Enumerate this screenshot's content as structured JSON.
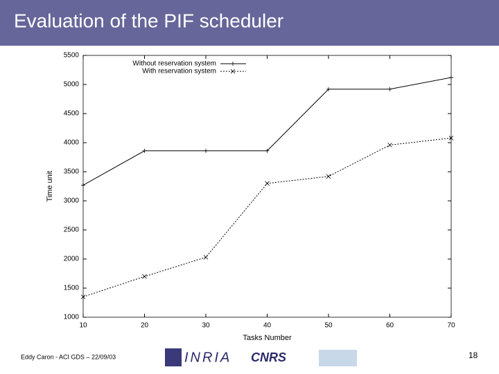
{
  "slide": {
    "title": "Evaluation of the PIF scheduler",
    "footer": "Eddy Caron - ACI GDS – 22/09/03",
    "page": "18",
    "logos": [
      "INRIA",
      "CNRS"
    ]
  },
  "chart_data": {
    "type": "line",
    "xlabel": "Tasks Number",
    "ylabel": "Time unit",
    "x": [
      10,
      20,
      30,
      40,
      50,
      60,
      70
    ],
    "series": [
      {
        "name": "Without reservation system",
        "color": "#000000",
        "values": [
          3270,
          3860,
          3860,
          3860,
          4920,
          4920,
          5120
        ]
      },
      {
        "name": "With reservation system",
        "color": "#000000",
        "values": [
          1350,
          1700,
          2030,
          3300,
          3420,
          3960,
          4080
        ]
      }
    ],
    "xlim": [
      10,
      70
    ],
    "xticks": [
      10,
      20,
      30,
      40,
      50,
      60,
      70
    ],
    "ylim": [
      1000,
      5500
    ],
    "yticks": [
      1000,
      1500,
      2000,
      2500,
      3000,
      3500,
      4000,
      4500,
      5000,
      5500
    ],
    "grid": false,
    "legend": "top"
  }
}
